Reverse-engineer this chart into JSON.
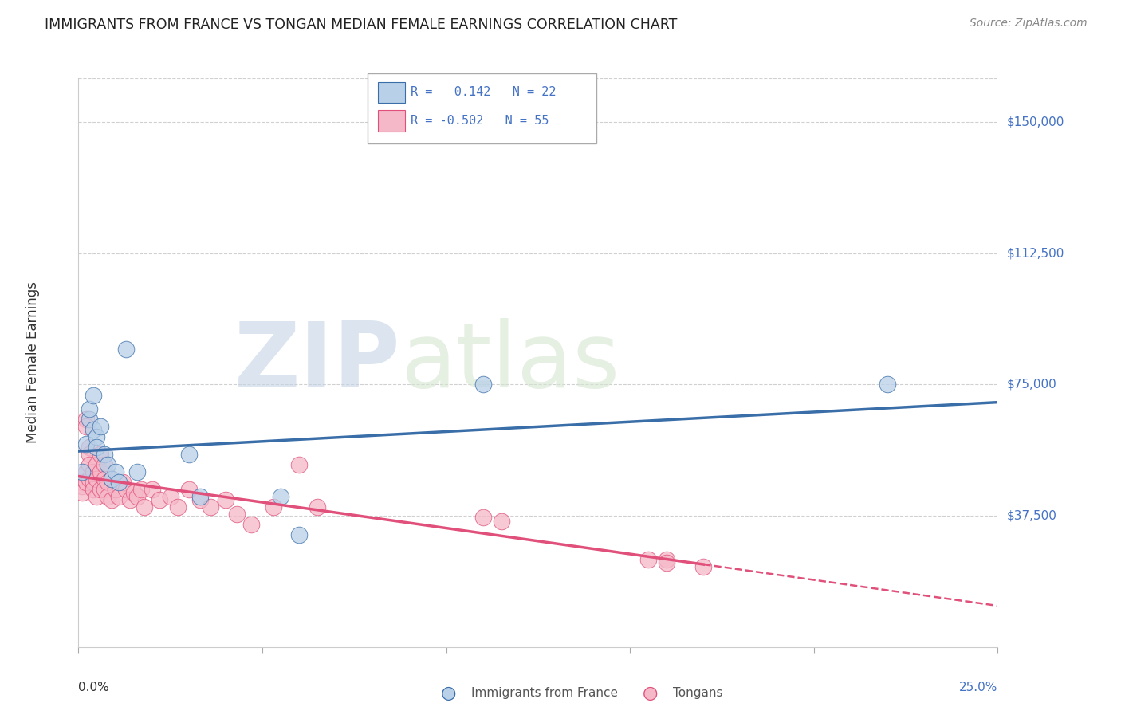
{
  "title": "IMMIGRANTS FROM FRANCE VS TONGAN MEDIAN FEMALE EARNINGS CORRELATION CHART",
  "source": "Source: ZipAtlas.com",
  "ylabel": "Median Female Earnings",
  "ytick_labels": [
    "$150,000",
    "$112,500",
    "$75,000",
    "$37,500"
  ],
  "ytick_values": [
    150000,
    112500,
    75000,
    37500
  ],
  "ymin": 0,
  "ymax": 162500,
  "xmin": 0.0,
  "xmax": 0.25,
  "legend_r1": "R =   0.142   N = 22",
  "legend_r2": "R = -0.502   N = 55",
  "color_france": "#b8d0e8",
  "color_tongan": "#f5b8c8",
  "color_france_line": "#3a6ea8",
  "color_tongan_line": "#e0507a",
  "watermark_zip": "ZIP",
  "watermark_atlas": "atlas",
  "france_x": [
    0.001,
    0.002,
    0.003,
    0.003,
    0.004,
    0.004,
    0.005,
    0.005,
    0.006,
    0.007,
    0.008,
    0.009,
    0.01,
    0.011,
    0.013,
    0.016,
    0.03,
    0.033,
    0.055,
    0.06,
    0.11,
    0.22
  ],
  "france_y": [
    50000,
    58000,
    65000,
    68000,
    62000,
    72000,
    60000,
    57000,
    63000,
    55000,
    52000,
    48000,
    50000,
    47000,
    85000,
    50000,
    55000,
    43000,
    43000,
    32000,
    75000,
    75000
  ],
  "tongan_x": [
    0.001,
    0.001,
    0.001,
    0.002,
    0.002,
    0.002,
    0.002,
    0.003,
    0.003,
    0.003,
    0.003,
    0.004,
    0.004,
    0.004,
    0.005,
    0.005,
    0.005,
    0.006,
    0.006,
    0.006,
    0.007,
    0.007,
    0.007,
    0.008,
    0.008,
    0.009,
    0.009,
    0.01,
    0.011,
    0.012,
    0.013,
    0.014,
    0.015,
    0.016,
    0.017,
    0.018,
    0.02,
    0.022,
    0.025,
    0.027,
    0.03,
    0.033,
    0.036,
    0.04,
    0.043,
    0.047,
    0.053,
    0.06,
    0.065,
    0.11,
    0.115,
    0.155,
    0.16,
    0.16,
    0.17
  ],
  "tongan_y": [
    47000,
    46000,
    44000,
    65000,
    63000,
    50000,
    47000,
    57000,
    55000,
    52000,
    48000,
    50000,
    47000,
    45000,
    52000,
    48000,
    43000,
    55000,
    50000,
    45000,
    52000,
    48000,
    45000,
    47000,
    43000,
    48000,
    42000,
    45000,
    43000,
    47000,
    45000,
    42000,
    44000,
    43000,
    45000,
    40000,
    45000,
    42000,
    43000,
    40000,
    45000,
    42000,
    40000,
    42000,
    38000,
    35000,
    40000,
    52000,
    40000,
    37000,
    36000,
    25000,
    25000,
    24000,
    23000
  ]
}
